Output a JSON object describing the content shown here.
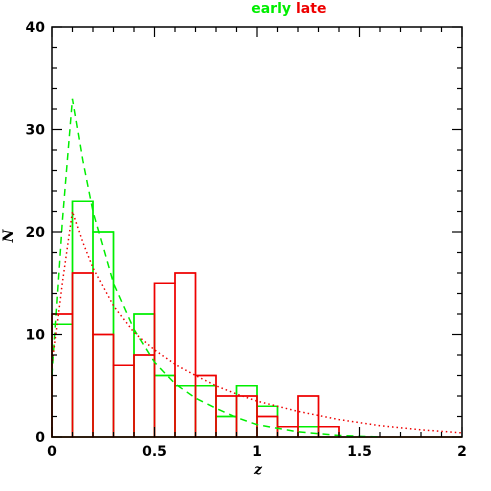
{
  "chart_data": {
    "type": "histogram",
    "title": "",
    "xlabel": "z",
    "ylabel": "N",
    "xlim": [
      0,
      2
    ],
    "ylim": [
      0,
      40
    ],
    "x_ticks": [
      0,
      0.5,
      1,
      1.5,
      2
    ],
    "x_tick_labels": [
      "0",
      "0.5",
      "1",
      "1.5",
      "2"
    ],
    "y_ticks": [
      0,
      10,
      20,
      30,
      40
    ],
    "y_tick_labels": [
      "0",
      "10",
      "20",
      "30",
      "40"
    ],
    "grid": false,
    "legend_position": "top-center",
    "bin_edges": [
      0,
      0.1,
      0.2,
      0.3,
      0.4,
      0.5,
      0.6,
      0.7,
      0.8,
      0.9,
      1.0,
      1.1,
      1.2,
      1.3,
      1.4,
      1.5,
      1.6,
      1.7,
      1.8,
      1.9,
      2.0
    ],
    "series": [
      {
        "name": "early",
        "color": "#00ee00",
        "kind": "histogram",
        "values": [
          11,
          23,
          20,
          7,
          12,
          6,
          5,
          5,
          2,
          5,
          3,
          1,
          1,
          0,
          0,
          0,
          0,
          0,
          0,
          0
        ]
      },
      {
        "name": "late",
        "color": "#ee0000",
        "kind": "histogram",
        "values": [
          12,
          16,
          10,
          7,
          8,
          15,
          16,
          6,
          4,
          4,
          2,
          1,
          4,
          1,
          0,
          0,
          0,
          0,
          0,
          0
        ]
      },
      {
        "name": "early",
        "color": "#00ee00",
        "kind": "model-curve",
        "line_style": "dashed",
        "x": [
          0,
          0.05,
          0.1,
          0.15,
          0.2,
          0.3,
          0.4,
          0.5,
          0.6,
          0.7,
          0.8,
          0.9,
          1.0,
          1.2,
          1.4,
          1.6
        ],
        "y": [
          6,
          21,
          33,
          27,
          22,
          15,
          10.5,
          7.3,
          5.2,
          3.8,
          2.8,
          1.9,
          1.2,
          0.5,
          0.15,
          0
        ]
      },
      {
        "name": "late",
        "color": "#ee0000",
        "kind": "model-curve",
        "line_style": "dotted",
        "x": [
          0,
          0.05,
          0.1,
          0.15,
          0.2,
          0.3,
          0.4,
          0.5,
          0.6,
          0.7,
          0.8,
          0.9,
          1.0,
          1.2,
          1.4,
          1.6,
          1.8,
          2.0
        ],
        "y": [
          7,
          15,
          22,
          19,
          16.5,
          12.8,
          10.2,
          8.5,
          7.1,
          6,
          5,
          4.2,
          3.5,
          2.5,
          1.7,
          1.1,
          0.7,
          0.4
        ]
      }
    ]
  },
  "legend": {
    "early_label": "early",
    "late_label": "late"
  }
}
